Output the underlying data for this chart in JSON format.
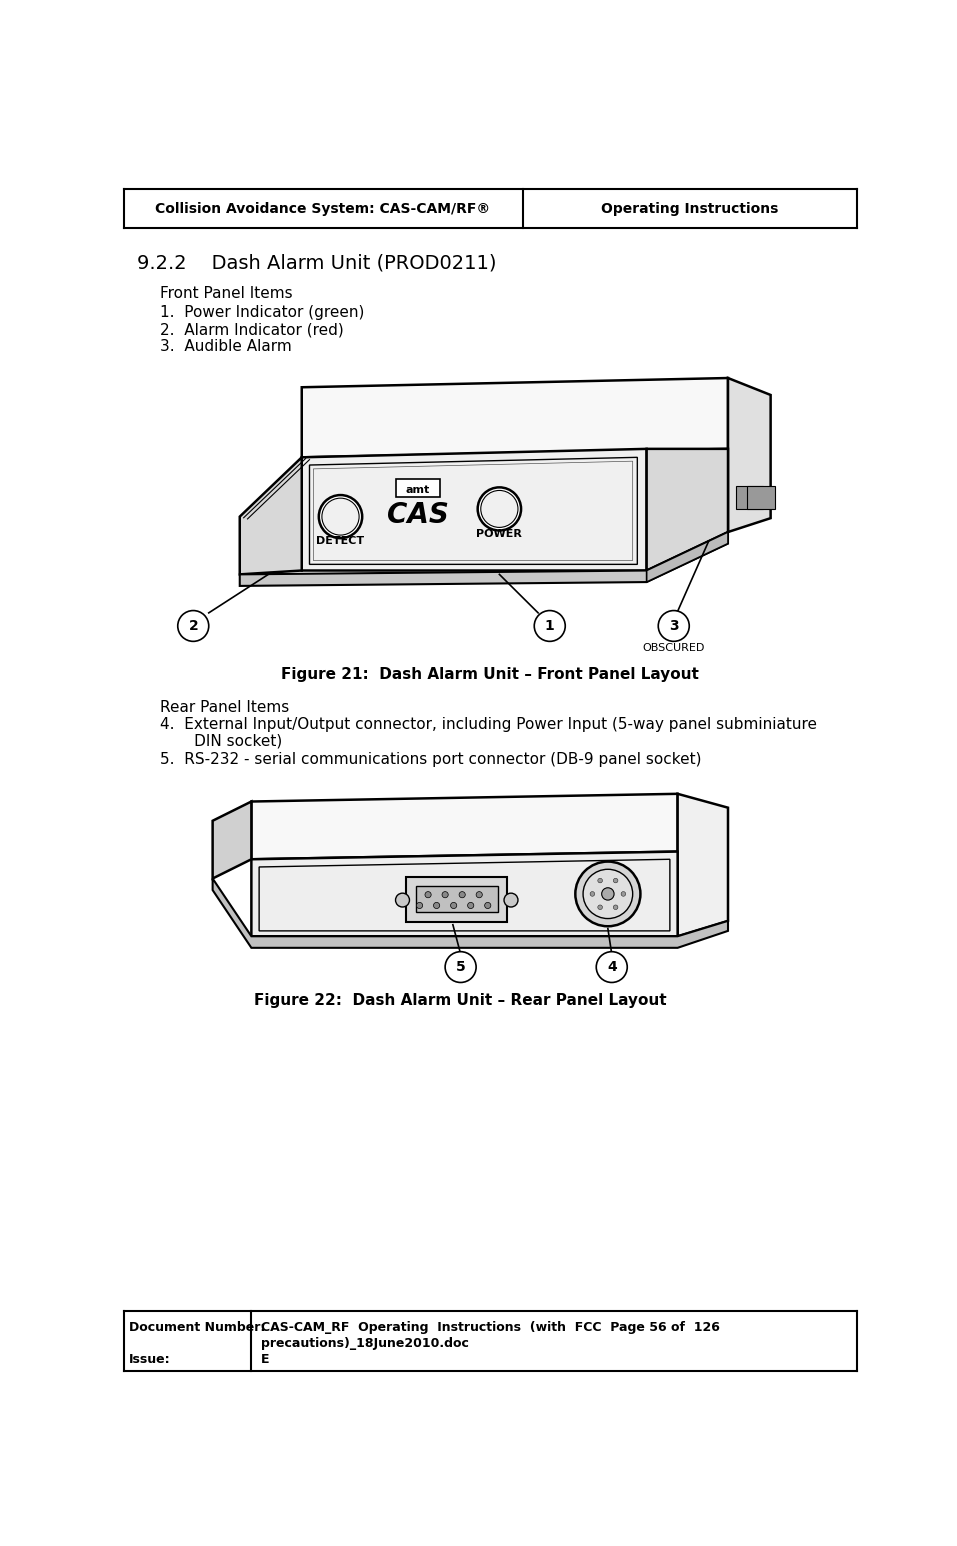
{
  "header_left": "Collision Avoidance System: CAS-CAM/RF®",
  "header_right": "Operating Instructions",
  "section_title": "9.2.2    Dash Alarm Unit (PROD0211)",
  "front_panel_label": "Front Panel Items",
  "front_items": [
    "1.  Power Indicator (green)",
    "2.  Alarm Indicator (red)",
    "3.  Audible Alarm"
  ],
  "figure21_caption": "Figure 21:  Dash Alarm Unit – Front Panel Layout",
  "rear_panel_label": "Rear Panel Items",
  "rear_item4a": "4.  External Input/Output connector, including Power Input (5-way panel subminiature",
  "rear_item4b": "       DIN socket)",
  "rear_item5": "5.  RS-232 - serial communications port connector (DB-9 panel socket)",
  "figure22_caption": "Figure 22:  Dash Alarm Unit – Rear Panel Layout",
  "footer_col1_row1": "Document Number:",
  "footer_col2_row1": "CAS-CAM_RF  Operating  Instructions  (with  FCC  Page 56 of  126",
  "footer_col2_row1b": "precautions)_18June2010.doc",
  "footer_col1_row2": "Issue:",
  "footer_col2_row2": "E",
  "bg_color": "#ffffff"
}
